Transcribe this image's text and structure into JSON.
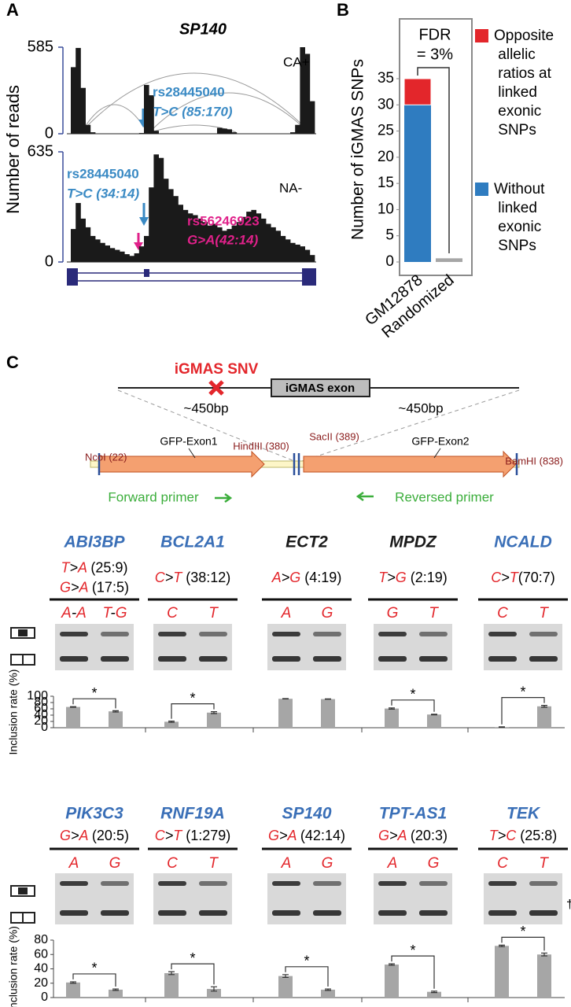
{
  "figure": {
    "panel_labels": [
      "A",
      "B",
      "C"
    ]
  },
  "chart_data": [
    {
      "type": "coverage",
      "title": "SP140",
      "ylabel": "Number of reads",
      "label": "CA+",
      "color": "#1a1a1a",
      "ylim": [
        0,
        585
      ],
      "yticks": [
        0,
        585
      ],
      "values": [
        450,
        580,
        310,
        60,
        10,
        0,
        0,
        0,
        0,
        0,
        0,
        0,
        0,
        0,
        5,
        330,
        260,
        20,
        0,
        0,
        0,
        0,
        0,
        0,
        0,
        0,
        0,
        0,
        0,
        0,
        40,
        35,
        30,
        10,
        0,
        0,
        0,
        0,
        0,
        0,
        0,
        0,
        0,
        0,
        0,
        10,
        60,
        585,
        540,
        220
      ],
      "annotations": [
        {
          "text": "rs28445040",
          "color": "#3a8ac4"
        },
        {
          "text": "T>C (85:170)",
          "color": "#3a8ac4"
        }
      ]
    },
    {
      "type": "coverage",
      "label": "NA-",
      "color": "#1a1a1a",
      "ylim": [
        0,
        635
      ],
      "yticks": [
        0,
        635
      ],
      "values": [
        190,
        340,
        250,
        200,
        150,
        130,
        110,
        95,
        80,
        70,
        60,
        45,
        35,
        50,
        90,
        150,
        430,
        620,
        600,
        480,
        420,
        380,
        330,
        300,
        280,
        270,
        250,
        230,
        210,
        220,
        200,
        180,
        190,
        210,
        230,
        260,
        290,
        300,
        280,
        250,
        220,
        200,
        180,
        150,
        130,
        110,
        100,
        90,
        70,
        40
      ],
      "annotations": [
        {
          "text": "rs28445040",
          "color": "#3a8ac4"
        },
        {
          "text": "T>C (34:14)",
          "color": "#3a8ac4"
        },
        {
          "text": "rs56246923",
          "color": "#e0218a"
        },
        {
          "text": "G>A(42:14)",
          "color": "#e0218a"
        }
      ]
    },
    {
      "type": "stacked-bar",
      "ylabel": "Number of iGMAS SNPs",
      "categories": [
        "GM12878",
        "Randomized"
      ],
      "ylim": [
        0,
        35
      ],
      "yticks": [
        0,
        5,
        10,
        15,
        20,
        25,
        30,
        35
      ],
      "series": [
        {
          "name": "Without linked exonic SNPs",
          "color": "#2f7cc0",
          "point_colors": [
            "#2f7cc0",
            "#a6a6a6"
          ],
          "values": [
            30,
            0.7
          ]
        },
        {
          "name": "Opposite allelic ratios at linked exonic SNPs",
          "color": "#e3262b",
          "values": [
            5,
            0
          ]
        }
      ],
      "annotations": [
        "FDR",
        "= 3%"
      ]
    },
    {
      "type": "gene-bars",
      "ylabel": "Inclusion rate (%)",
      "color": "#a6a6a6",
      "allele_color": "#e3262b",
      "ylim": [
        0,
        100
      ],
      "yticks": [
        0,
        20,
        40,
        60,
        80,
        100
      ],
      "groups": [
        {
          "gene": "ABI3BP",
          "gene_color": "#3a6fb7",
          "variants": [
            "T>A (25:9)",
            "G>A (17:5)"
          ],
          "lanes": [
            "A-A",
            "T-G"
          ],
          "values": [
            66,
            52
          ],
          "errors": [
            1,
            2
          ],
          "significance": "*"
        },
        {
          "gene": "BCL2A1",
          "gene_color": "#3a6fb7",
          "variants": [
            "C>T (38:12)"
          ],
          "lanes": [
            "C",
            "T"
          ],
          "values": [
            19,
            48
          ],
          "errors": [
            2,
            3
          ],
          "significance": "*"
        },
        {
          "gene": "ECT2",
          "gene_color": "#1a1a1a",
          "variants": [
            "A>G (4:19)"
          ],
          "lanes": [
            "A",
            "G"
          ],
          "values": [
            92,
            91
          ],
          "errors": [
            0.5,
            0.5
          ]
        },
        {
          "gene": "MPDZ",
          "gene_color": "#1a1a1a",
          "variants": [
            "T>G (2:19)"
          ],
          "lanes": [
            "G",
            "T"
          ],
          "values": [
            61,
            42
          ],
          "errors": [
            2,
            1
          ],
          "significance": "*"
        },
        {
          "gene": "NCALD",
          "gene_color": "#3a6fb7",
          "variants": [
            "C>T(70:7)"
          ],
          "lanes": [
            "C",
            "T"
          ],
          "values": [
            2,
            68
          ],
          "errors": [
            1,
            3
          ],
          "significance": "*"
        }
      ]
    },
    {
      "type": "gene-bars",
      "ylabel": "Inclusion rate (%)",
      "color": "#a6a6a6",
      "allele_color": "#e3262b",
      "ylim": [
        0,
        80
      ],
      "yticks": [
        0,
        20,
        40,
        60,
        80
      ],
      "groups": [
        {
          "gene": "PIK3C3",
          "gene_color": "#3a6fb7",
          "variants": [
            "G>A (20:5)"
          ],
          "lanes": [
            "A",
            "G"
          ],
          "values": [
            21,
            11
          ],
          "errors": [
            1,
            1
          ],
          "significance": "*"
        },
        {
          "gene": "RNF19A",
          "gene_color": "#3a6fb7",
          "variants": [
            "C>T (1:279)"
          ],
          "lanes": [
            "C",
            "T"
          ],
          "values": [
            34,
            12
          ],
          "errors": [
            2,
            3
          ],
          "significance": "*"
        },
        {
          "gene": "SP140",
          "gene_color": "#3a6fb7",
          "variants": [
            "G>A (42:14)"
          ],
          "lanes": [
            "A",
            "G"
          ],
          "values": [
            30,
            11
          ],
          "errors": [
            2,
            1
          ],
          "significance": "*"
        },
        {
          "gene": "TPT-AS1",
          "gene_color": "#3a6fb7",
          "variants": [
            "G>A (20:3)"
          ],
          "lanes": [
            "A",
            "G"
          ],
          "values": [
            46,
            8
          ],
          "errors": [
            1,
            1
          ],
          "significance": "*"
        },
        {
          "gene": "TEK",
          "gene_color": "#3a6fb7",
          "variants": [
            "T>C (25:8)"
          ],
          "lanes": [
            "C",
            "T"
          ],
          "values": [
            72,
            60
          ],
          "errors": [
            1,
            2
          ],
          "significance": "*",
          "note": "†"
        }
      ]
    }
  ],
  "diagram": {
    "snv": "iGMAS SNV",
    "exon": "iGMAS exon",
    "left_flank": "~450bp",
    "right_flank": "~450bp",
    "site_1": "NcoI (22)",
    "exon_1": "GFP-Exon1",
    "site_2": "HindIII (380)",
    "site_3": "SacII (389)",
    "exon_2": "GFP-Exon2",
    "site_4": "BamHI (838)",
    "forward_primer": "Forward primer",
    "reverse_primer": "Reversed primer"
  }
}
